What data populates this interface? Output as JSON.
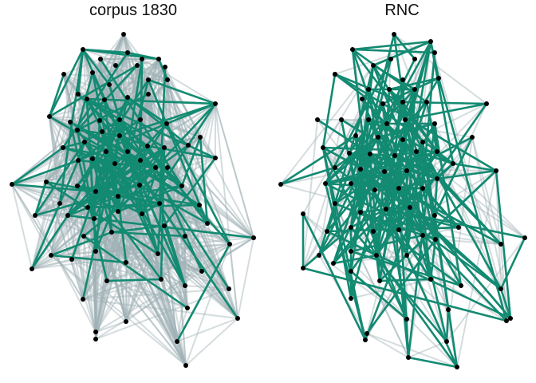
{
  "panels": [
    {
      "title": "corpus  1830"
    },
    {
      "title": "RNC"
    }
  ],
  "colors": {
    "strong_edge": "#138a72",
    "weak_edge": "#9fb1b5",
    "node": "#000000",
    "background": "#ffffff"
  }
}
